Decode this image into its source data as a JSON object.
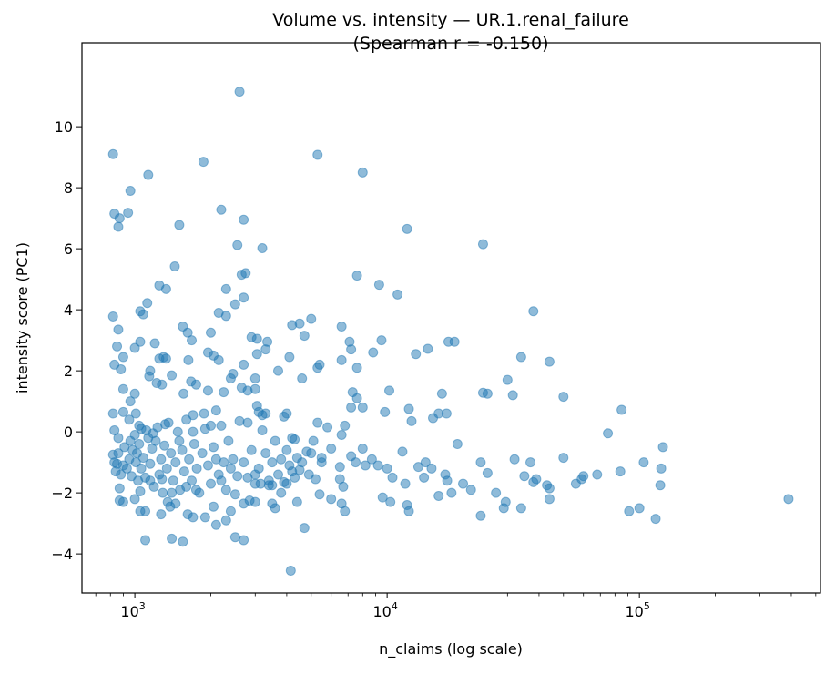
{
  "chart_data": {
    "type": "scatter",
    "title": "Volume vs. intensity — UR.1.renal_failure",
    "subtitle": "(Spearman r = -0.150)",
    "xlabel": "n_claims (log scale)",
    "ylabel": "intensity score (PC1)",
    "xscale": "log",
    "xlim": [
      617,
      522000
    ],
    "ylim": [
      -5.28,
      12.75
    ],
    "x_ticks": [
      {
        "value": 1000,
        "base": "10",
        "exp": "3"
      },
      {
        "value": 10000,
        "base": "10",
        "exp": "4"
      },
      {
        "value": 100000,
        "base": "10",
        "exp": "5"
      }
    ],
    "y_ticks": [
      -4,
      -2,
      0,
      2,
      4,
      6,
      8,
      10
    ],
    "grid": false,
    "marker_color": "#1f77b4",
    "marker_alpha": 0.5,
    "points": [
      [
        2600,
        11.15
      ],
      [
        820,
        9.1
      ],
      [
        1870,
        8.85
      ],
      [
        5300,
        9.08
      ],
      [
        8000,
        8.5
      ],
      [
        1130,
        8.42
      ],
      [
        960,
        7.9
      ],
      [
        830,
        7.15
      ],
      [
        870,
        7.0
      ],
      [
        940,
        7.18
      ],
      [
        860,
        6.72
      ],
      [
        2200,
        7.28
      ],
      [
        2700,
        6.95
      ],
      [
        1500,
        6.78
      ],
      [
        2550,
        6.12
      ],
      [
        3200,
        6.02
      ],
      [
        12000,
        6.65
      ],
      [
        24000,
        6.15
      ],
      [
        1440,
        5.42
      ],
      [
        2650,
        5.15
      ],
      [
        2750,
        5.2
      ],
      [
        7600,
        5.12
      ],
      [
        9300,
        4.82
      ],
      [
        11000,
        4.5
      ],
      [
        1250,
        4.8
      ],
      [
        1330,
        4.68
      ],
      [
        2300,
        4.68
      ],
      [
        2700,
        4.4
      ],
      [
        1120,
        4.22
      ],
      [
        1050,
        3.95
      ],
      [
        1080,
        3.85
      ],
      [
        2150,
        3.9
      ],
      [
        2300,
        3.8
      ],
      [
        2500,
        4.18
      ],
      [
        820,
        3.78
      ],
      [
        38000,
        3.95
      ],
      [
        860,
        3.35
      ],
      [
        1550,
        3.45
      ],
      [
        1620,
        3.25
      ],
      [
        1680,
        3.0
      ],
      [
        2000,
        3.25
      ],
      [
        2900,
        3.1
      ],
      [
        3050,
        3.05
      ],
      [
        3350,
        2.95
      ],
      [
        4200,
        3.5
      ],
      [
        4500,
        3.55
      ],
      [
        5000,
        3.7
      ],
      [
        4700,
        3.15
      ],
      [
        6600,
        3.45
      ],
      [
        7100,
        2.95
      ],
      [
        7200,
        2.7
      ],
      [
        9500,
        3.0
      ],
      [
        8800,
        2.6
      ],
      [
        13000,
        2.55
      ],
      [
        14500,
        2.72
      ],
      [
        17500,
        2.95
      ],
      [
        18500,
        2.95
      ],
      [
        34000,
        2.45
      ],
      [
        44000,
        2.3
      ],
      [
        1050,
        2.95
      ],
      [
        1000,
        2.75
      ],
      [
        850,
        2.8
      ],
      [
        1200,
        2.9
      ],
      [
        1300,
        2.45
      ],
      [
        1330,
        2.4
      ],
      [
        1250,
        2.4
      ],
      [
        900,
        2.45
      ],
      [
        830,
        2.2
      ],
      [
        880,
        2.05
      ],
      [
        1150,
        2.0
      ],
      [
        1400,
        1.85
      ],
      [
        1220,
        1.6
      ],
      [
        1140,
        1.82
      ],
      [
        1280,
        1.55
      ],
      [
        1630,
        2.35
      ],
      [
        1950,
        2.6
      ],
      [
        2050,
        2.5
      ],
      [
        2150,
        2.35
      ],
      [
        2450,
        1.9
      ],
      [
        2700,
        2.2
      ],
      [
        3050,
        2.55
      ],
      [
        3300,
        2.7
      ],
      [
        3700,
        2.0
      ],
      [
        4100,
        2.45
      ],
      [
        5400,
        2.2
      ],
      [
        5300,
        2.1
      ],
      [
        6600,
        2.35
      ],
      [
        7600,
        2.1
      ],
      [
        4600,
        1.75
      ],
      [
        3000,
        1.75
      ],
      [
        2400,
        1.75
      ],
      [
        1670,
        1.65
      ],
      [
        1750,
        1.55
      ],
      [
        2800,
        1.35
      ],
      [
        3000,
        1.4
      ],
      [
        2650,
        1.45
      ],
      [
        2250,
        1.3
      ],
      [
        1950,
        1.35
      ],
      [
        1560,
        1.25
      ],
      [
        30000,
        1.7
      ],
      [
        31500,
        1.2
      ],
      [
        24000,
        1.28
      ],
      [
        25000,
        1.25
      ],
      [
        50000,
        1.15
      ],
      [
        16500,
        1.25
      ],
      [
        10200,
        1.35
      ],
      [
        7300,
        1.3
      ],
      [
        7600,
        1.1
      ],
      [
        1000,
        1.25
      ],
      [
        960,
        1.0
      ],
      [
        900,
        1.4
      ],
      [
        3050,
        0.85
      ],
      [
        4000,
        0.6
      ],
      [
        3900,
        0.5
      ],
      [
        3300,
        0.6
      ],
      [
        3200,
        0.55
      ],
      [
        2100,
        0.7
      ],
      [
        1700,
        0.55
      ],
      [
        1880,
        0.6
      ],
      [
        7200,
        0.8
      ],
      [
        8000,
        0.8
      ],
      [
        12200,
        0.75
      ],
      [
        9800,
        0.65
      ],
      [
        12500,
        0.35
      ],
      [
        15200,
        0.45
      ],
      [
        16000,
        0.6
      ],
      [
        17200,
        0.6
      ],
      [
        85000,
        0.72
      ],
      [
        75000,
        -0.05
      ],
      [
        1010,
        0.6
      ],
      [
        1040,
        0.2
      ],
      [
        900,
        0.65
      ],
      [
        820,
        0.6
      ],
      [
        830,
        0.05
      ],
      [
        860,
        -0.2
      ],
      [
        5300,
        0.3
      ],
      [
        5800,
        0.15
      ],
      [
        6600,
        -0.1
      ],
      [
        6800,
        0.2
      ],
      [
        5100,
        -0.3
      ],
      [
        5500,
        -0.85
      ],
      [
        6000,
        -0.55
      ],
      [
        7200,
        -0.8
      ],
      [
        7500,
        -1.0
      ],
      [
        8000,
        -0.55
      ],
      [
        8200,
        -1.1
      ],
      [
        8700,
        -0.9
      ],
      [
        9200,
        -1.1
      ],
      [
        10000,
        -1.2
      ],
      [
        10500,
        -1.5
      ],
      [
        10300,
        -2.3
      ],
      [
        9600,
        -2.15
      ],
      [
        11500,
        -0.65
      ],
      [
        11800,
        -1.7
      ],
      [
        12000,
        -2.4
      ],
      [
        12200,
        -2.6
      ],
      [
        13300,
        -1.15
      ],
      [
        14000,
        -1.5
      ],
      [
        14200,
        -1.0
      ],
      [
        15000,
        -1.2
      ],
      [
        16000,
        -2.1
      ],
      [
        17000,
        -1.4
      ],
      [
        17300,
        -1.6
      ],
      [
        18000,
        -2.0
      ],
      [
        19000,
        -0.4
      ],
      [
        20000,
        -1.7
      ],
      [
        21500,
        -1.9
      ],
      [
        23500,
        -1.0
      ],
      [
        23500,
        -2.75
      ],
      [
        25000,
        -1.35
      ],
      [
        27000,
        -2.0
      ],
      [
        29000,
        -2.5
      ],
      [
        29500,
        -2.3
      ],
      [
        32000,
        -0.9
      ],
      [
        34000,
        -2.5
      ],
      [
        35000,
        -1.45
      ],
      [
        37000,
        -1.0
      ],
      [
        38000,
        -1.65
      ],
      [
        39000,
        -1.55
      ],
      [
        43000,
        -1.75
      ],
      [
        44000,
        -2.2
      ],
      [
        44000,
        -1.85
      ],
      [
        50000,
        -0.85
      ],
      [
        56000,
        -1.7
      ],
      [
        59000,
        -1.55
      ],
      [
        60000,
        -1.45
      ],
      [
        68000,
        -1.4
      ],
      [
        84000,
        -1.3
      ],
      [
        91000,
        -2.6
      ],
      [
        100000,
        -2.5
      ],
      [
        104000,
        -1.0
      ],
      [
        116000,
        -2.85
      ],
      [
        121000,
        -1.75
      ],
      [
        122000,
        -1.2
      ],
      [
        124000,
        -0.5
      ],
      [
        390000,
        -2.2
      ],
      [
        5000,
        -0.7
      ],
      [
        5200,
        -1.55
      ],
      [
        5400,
        -2.05
      ],
      [
        5500,
        -1.0
      ],
      [
        6000,
        -2.2
      ],
      [
        6500,
        -1.55
      ],
      [
        6600,
        -2.35
      ],
      [
        6800,
        -2.6
      ],
      [
        6700,
        -1.8
      ],
      [
        6500,
        -1.15
      ],
      [
        4300,
        -0.25
      ],
      [
        4500,
        -1.25
      ],
      [
        4400,
        -2.3
      ],
      [
        4700,
        -3.15
      ],
      [
        4150,
        -4.55
      ],
      [
        4000,
        -1.7
      ],
      [
        3600,
        -2.5
      ],
      [
        3500,
        -2.35
      ],
      [
        3800,
        -2.0
      ],
      [
        2700,
        -3.55
      ],
      [
        2500,
        -3.45
      ],
      [
        2300,
        -2.9
      ],
      [
        2100,
        -3.05
      ],
      [
        1900,
        -2.8
      ],
      [
        1550,
        -3.6
      ],
      [
        1400,
        -3.5
      ],
      [
        1100,
        -3.55
      ],
      [
        1700,
        -2.8
      ],
      [
        1620,
        -2.7
      ],
      [
        1450,
        -2.35
      ],
      [
        1380,
        -2.45
      ],
      [
        1100,
        -2.6
      ],
      [
        1050,
        -2.6
      ],
      [
        1270,
        -2.7
      ],
      [
        900,
        -2.3
      ],
      [
        870,
        -2.25
      ],
      [
        1350,
        -2.3
      ],
      [
        2050,
        -2.45
      ],
      [
        2400,
        -2.6
      ],
      [
        2700,
        -2.35
      ],
      [
        2850,
        -2.25
      ],
      [
        3000,
        -2.3
      ],
      [
        3150,
        -1.7
      ],
      [
        3400,
        -1.75
      ],
      [
        820,
        -0.75
      ],
      [
        830,
        -1.0
      ],
      [
        840,
        -1.3
      ],
      [
        850,
        -1.05
      ],
      [
        860,
        -0.7
      ],
      [
        880,
        -1.4
      ],
      [
        900,
        -1.1
      ],
      [
        910,
        -0.5
      ],
      [
        930,
        -1.2
      ],
      [
        950,
        -0.9
      ],
      [
        960,
        -0.3
      ],
      [
        970,
        -1.45
      ],
      [
        980,
        -0.6
      ],
      [
        1000,
        -0.1
      ],
      [
        1010,
        -1.0
      ],
      [
        1020,
        -0.7
      ],
      [
        1030,
        -1.6
      ],
      [
        1040,
        -0.4
      ],
      [
        1060,
        -1.2
      ],
      [
        1080,
        -0.85
      ],
      [
        1100,
        -1.5
      ],
      [
        1110,
        0.05
      ],
      [
        1130,
        -0.2
      ],
      [
        1150,
        -1.05
      ],
      [
        1170,
        -0.55
      ],
      [
        1190,
        -1.8
      ],
      [
        1210,
        -0.3
      ],
      [
        1230,
        0.15
      ],
      [
        1250,
        -1.4
      ],
      [
        1270,
        -0.9
      ],
      [
        1290,
        -2.0
      ],
      [
        1310,
        -0.45
      ],
      [
        1340,
        -1.2
      ],
      [
        1360,
        0.3
      ],
      [
        1390,
        -0.7
      ],
      [
        1420,
        -1.6
      ],
      [
        1450,
        -1.0
      ],
      [
        1480,
        0.0
      ],
      [
        1510,
        -1.9
      ],
      [
        1540,
        -0.6
      ],
      [
        1570,
        -1.3
      ],
      [
        1600,
        0.4
      ],
      [
        1640,
        -0.9
      ],
      [
        1680,
        -1.6
      ],
      [
        1720,
        -0.4
      ],
      [
        1760,
        -1.2
      ],
      [
        1800,
        -2.0
      ],
      [
        1850,
        -0.7
      ],
      [
        1900,
        0.1
      ],
      [
        1950,
        -1.1
      ],
      [
        2000,
        -1.7
      ],
      [
        2050,
        -0.5
      ],
      [
        2100,
        -0.9
      ],
      [
        2150,
        -1.4
      ],
      [
        2200,
        0.2
      ],
      [
        2250,
        -1.0
      ],
      [
        2300,
        -1.9
      ],
      [
        2350,
        -0.3
      ],
      [
        2400,
        -1.2
      ],
      [
        2450,
        -0.9
      ],
      [
        2550,
        -1.45
      ],
      [
        2600,
        0.35
      ],
      [
        2700,
        -1.0
      ],
      [
        2800,
        -1.5
      ],
      [
        2900,
        -0.6
      ],
      [
        3000,
        -1.7
      ],
      [
        3100,
        -1.2
      ],
      [
        3200,
        0.05
      ],
      [
        3300,
        -0.7
      ],
      [
        3400,
        -1.6
      ],
      [
        3500,
        -1.0
      ],
      [
        3600,
        -0.3
      ],
      [
        3700,
        -1.4
      ],
      [
        3800,
        -0.9
      ],
      [
        3900,
        -1.65
      ],
      [
        4000,
        -0.6
      ],
      [
        4100,
        -1.1
      ],
      [
        4200,
        -0.2
      ],
      [
        4300,
        -1.5
      ],
      [
        4400,
        -0.85
      ],
      [
        4600,
        -1.0
      ],
      [
        4800,
        -0.65
      ],
      [
        4900,
        -1.4
      ],
      [
        950,
        0.4
      ],
      [
        1060,
        0.1
      ],
      [
        1180,
        -0.05
      ],
      [
        1320,
        0.25
      ],
      [
        1500,
        -0.3
      ],
      [
        2800,
        0.3
      ],
      [
        3100,
        0.65
      ],
      [
        2000,
        0.2
      ],
      [
        1700,
        0.0
      ],
      [
        1150,
        -1.6
      ],
      [
        1280,
        -1.55
      ],
      [
        1600,
        -1.8
      ],
      [
        2200,
        -1.6
      ],
      [
        870,
        -1.85
      ],
      [
        1000,
        -2.2
      ],
      [
        1050,
        -1.95
      ],
      [
        1400,
        -2.0
      ],
      [
        1750,
        -1.9
      ],
      [
        2500,
        -2.05
      ],
      [
        3000,
        -1.4
      ],
      [
        3500,
        -1.75
      ],
      [
        4200,
        -1.3
      ]
    ]
  }
}
